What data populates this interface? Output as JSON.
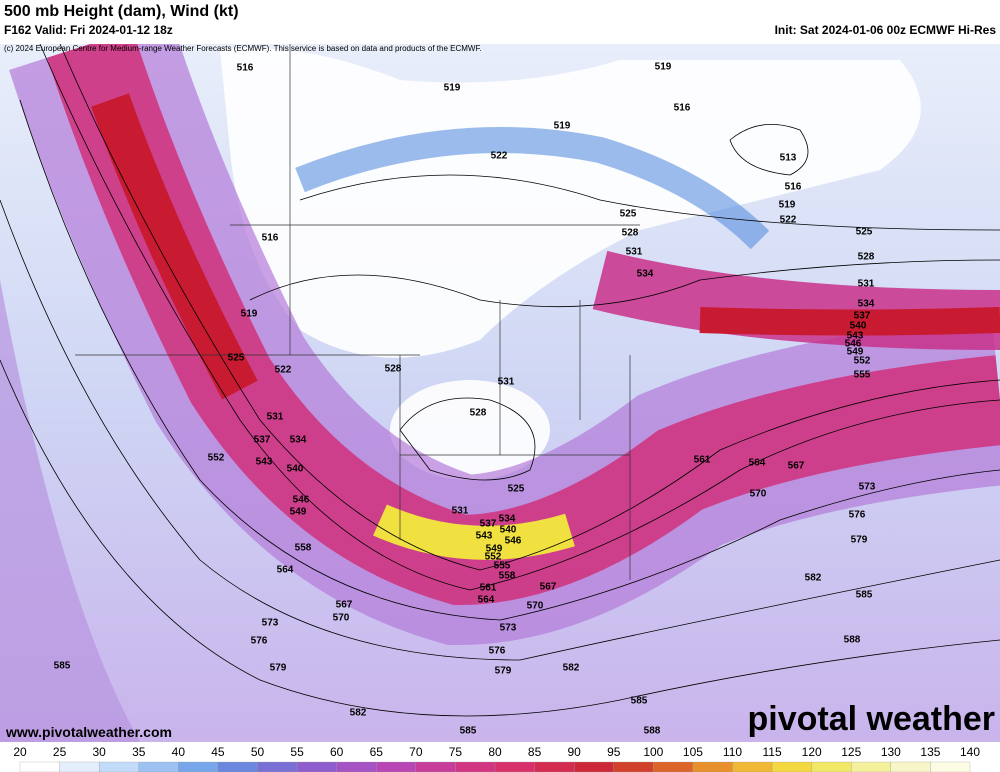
{
  "header": {
    "title": "500 mb Height (dam), Wind (kt)",
    "valid": "F162 Valid: Fri 2024-01-12 18z",
    "init": "Init: Sat 2024-01-06 00z ECMWF Hi-Res",
    "copyright": "(c) 2024 European Centre for Medium-range Weather Forecasts (ECMWF). This service is based on data and products of the ECMWF."
  },
  "footer": {
    "website": "www.pivotalweather.com",
    "logo": "pivotal weather"
  },
  "colorbar": {
    "ticks": [
      20,
      25,
      30,
      35,
      40,
      45,
      50,
      55,
      60,
      65,
      70,
      75,
      80,
      85,
      90,
      95,
      100,
      105,
      110,
      115,
      120,
      125,
      130,
      135,
      140
    ]
  },
  "contour_labels": [
    516,
    519,
    519,
    519,
    516,
    513,
    516,
    519,
    522,
    522,
    525,
    528,
    531,
    534,
    525,
    528,
    531,
    534,
    537,
    540,
    543,
    546,
    549,
    552,
    555,
    516,
    519,
    522,
    525,
    528,
    531,
    528,
    525,
    531,
    534,
    537,
    540,
    543,
    546,
    549,
    552,
    555,
    558,
    561,
    564,
    567,
    570,
    573,
    576,
    579,
    582,
    585,
    588,
    585,
    582,
    579,
    576,
    573,
    570,
    567,
    564,
    561,
    531,
    534,
    537,
    540,
    543,
    546,
    549,
    552,
    558,
    564,
    567,
    570,
    573,
    576,
    579,
    582,
    585,
    585,
    588
  ]
}
